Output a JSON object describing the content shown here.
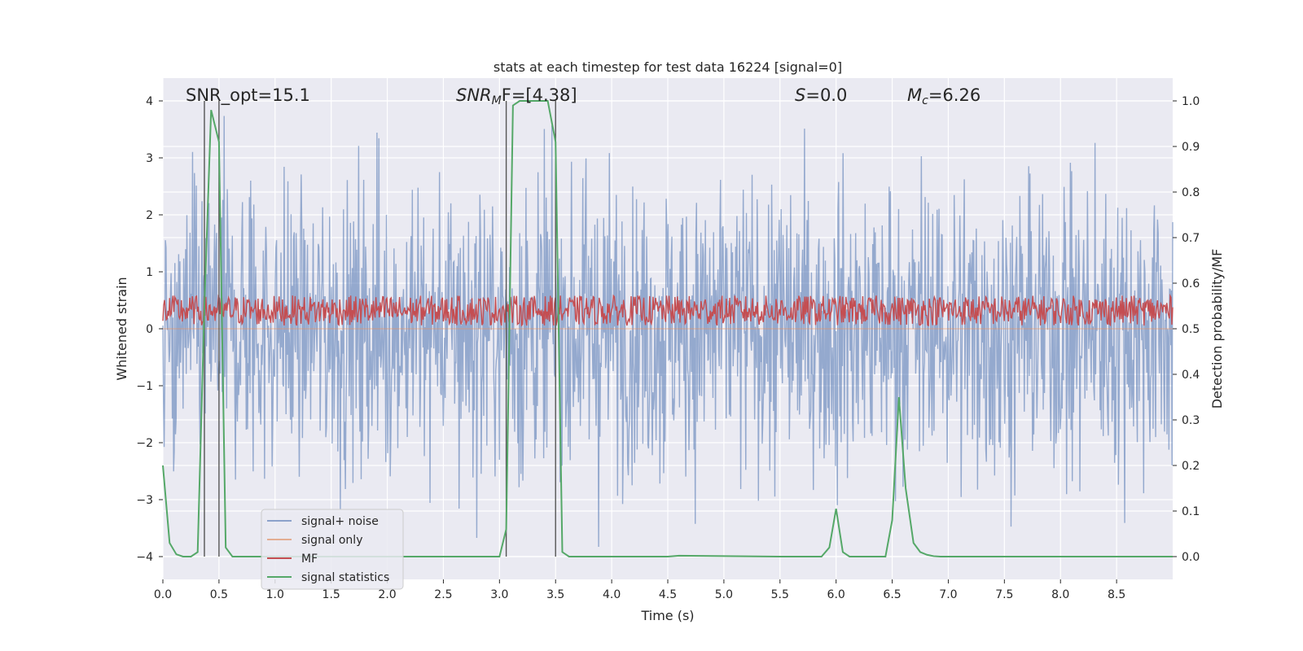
{
  "chart_data": {
    "type": "line",
    "title": "stats at each timestep for test data 16224 [signal=0]",
    "xlabel": "Time (s)",
    "ylabel_left": "Whitened strain",
    "ylabel_right": "Detection probability/MF",
    "xlim": [
      0.0,
      9.0
    ],
    "ylim_left": [
      -4.4,
      4.4
    ],
    "ylim_right": [
      -0.05,
      1.05
    ],
    "xticks": [
      "0.0",
      "0.5",
      "1.0",
      "1.5",
      "2.0",
      "2.5",
      "3.0",
      "3.5",
      "4.0",
      "4.5",
      "5.0",
      "5.5",
      "6.0",
      "6.5",
      "7.0",
      "7.5",
      "8.0",
      "8.5"
    ],
    "yticks_left": [
      "−4",
      "−3",
      "−2",
      "−1",
      "0",
      "1",
      "2",
      "3",
      "4"
    ],
    "yticks_right": [
      "0.0",
      "0.1",
      "0.2",
      "0.3",
      "0.4",
      "0.5",
      "0.6",
      "0.7",
      "0.8",
      "0.9",
      "1.0"
    ],
    "grid": true,
    "legend_position": "lower-left",
    "annotations": {
      "snr_opt": "SNR_opt=15.1",
      "snr_mf_sym": "SNR",
      "snr_mf_sub": "M",
      "snr_mf_rest": "F=[4.38]",
      "s_sym": "S",
      "s_rest": "=0.0",
      "mc_sym": "M",
      "mc_sub": "c",
      "mc_rest": "=6.26"
    },
    "vertical_lines": [
      0.37,
      0.5,
      3.06,
      3.5
    ],
    "series": [
      {
        "name": "signal+ noise",
        "color": "#4c72b0",
        "axis": "left",
        "kind": "noise",
        "approx_envelope": [
          -4.0,
          4.0
        ]
      },
      {
        "name": "signal only",
        "color": "#dd8452",
        "axis": "left",
        "kind": "flat",
        "value": 0.0
      },
      {
        "name": "MF",
        "color": "#c44e52",
        "axis": "right",
        "kind": "noise-band",
        "approx_range": [
          0.51,
          0.57
        ]
      },
      {
        "name": "signal statistics",
        "color": "#55a868",
        "axis": "right",
        "kind": "line",
        "x": [
          0.0,
          0.06,
          0.12,
          0.18,
          0.25,
          0.31,
          0.37,
          0.43,
          0.5,
          0.56,
          0.62,
          0.68,
          1.5,
          3.0,
          3.06,
          3.12,
          3.18,
          3.25,
          3.31,
          3.37,
          3.43,
          3.5,
          3.56,
          3.62,
          4.5,
          4.6,
          5.5,
          5.87,
          5.94,
          6.0,
          6.06,
          6.12,
          6.44,
          6.5,
          6.56,
          6.62,
          6.69,
          6.75,
          6.81,
          6.87,
          6.93,
          7.0,
          9.0
        ],
        "y": [
          0.2,
          0.03,
          0.005,
          0.0,
          0.0,
          0.01,
          0.55,
          0.98,
          0.91,
          0.02,
          0.0,
          0.0,
          0.0,
          0.0,
          0.06,
          0.99,
          1.0,
          1.0,
          1.0,
          1.0,
          1.0,
          0.91,
          0.01,
          0.0,
          0.0,
          0.002,
          0.0,
          0.0,
          0.02,
          0.105,
          0.01,
          0.0,
          0.0,
          0.08,
          0.35,
          0.15,
          0.03,
          0.01,
          0.004,
          0.001,
          0.0,
          0.0,
          0.0
        ]
      }
    ]
  }
}
